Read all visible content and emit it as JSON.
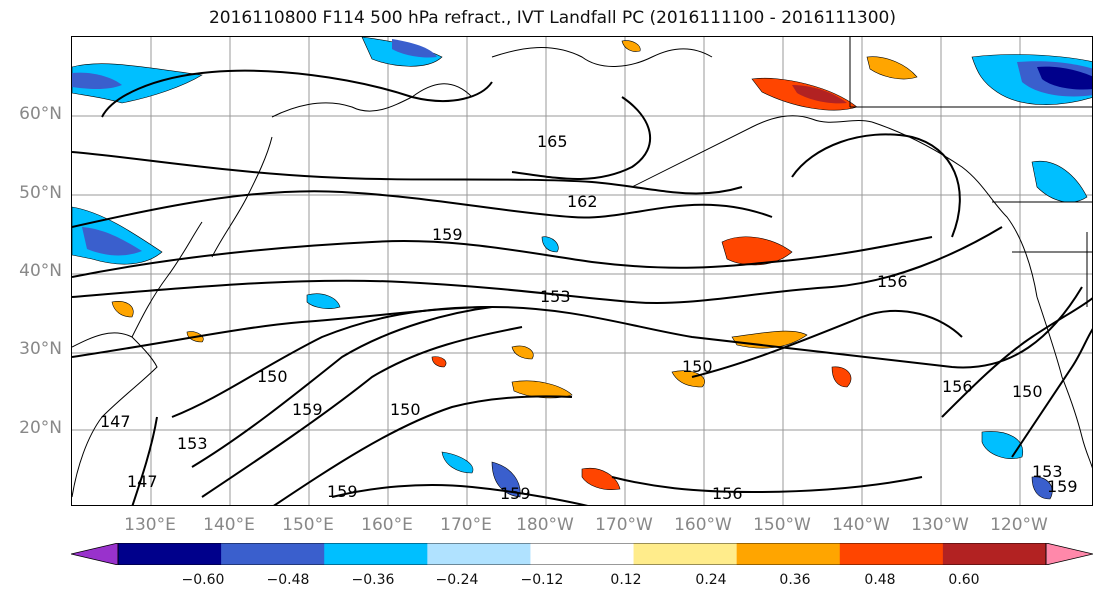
{
  "title": "2016110800 F114 500 hPa refract., IVT Landfall PC (2016111100 - 2016111300)",
  "map": {
    "lat_labels": [
      "60°N",
      "50°N",
      "40°N",
      "30°N",
      "20°N"
    ],
    "lon_labels": [
      "130°E",
      "140°E",
      "150°E",
      "160°E",
      "170°E",
      "180°W",
      "170°W",
      "160°W",
      "150°W",
      "140°W",
      "130°W",
      "120°W"
    ],
    "contour_labels": [
      "165",
      "162",
      "159",
      "153",
      "156",
      "150",
      "150",
      "159",
      "150",
      "153",
      "147",
      "147",
      "159",
      "159",
      "156",
      "156",
      "150",
      "153",
      "159"
    ],
    "contour_color": "#000000",
    "coastline_color": "#000000",
    "grid": true
  },
  "colorbar": {
    "tick_labels": [
      "−0.60",
      "−0.48",
      "−0.36",
      "−0.24",
      "−0.12",
      "0.12",
      "0.24",
      "0.36",
      "0.48",
      "0.60"
    ],
    "colors": [
      "#9932cc",
      "#00008b",
      "#3a5fcd",
      "#00bfff",
      "#b0e2ff",
      "#ffffff",
      "#ffec8b",
      "#ffa500",
      "#ff4500",
      "#b22222",
      "#ff88aa"
    ]
  }
}
